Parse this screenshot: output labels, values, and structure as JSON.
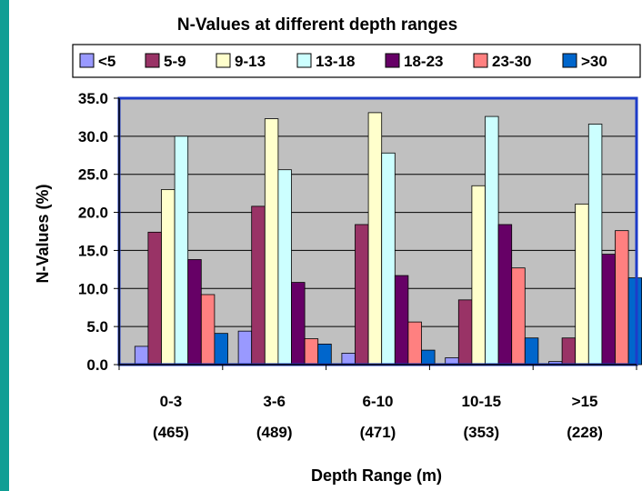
{
  "colors": {
    "page_border": "#0f9e94",
    "plot_bg": "#c0c0c0",
    "plot_border": "#1e3cc8"
  },
  "chart_data": {
    "type": "bar",
    "title": "N-Values at different depth ranges",
    "xlabel": "Depth Range (m)",
    "ylabel": "N-Values (%)",
    "ylim": [
      0,
      35
    ],
    "y_ticks": [
      "0.0",
      "5.0",
      "10.0",
      "15.0",
      "20.0",
      "25.0",
      "30.0",
      "35.0"
    ],
    "grid": true,
    "legend_position": "top",
    "categories": [
      "0-3",
      "3-6",
      "6-10",
      "10-15",
      ">15"
    ],
    "category_counts": [
      "(465)",
      "(489)",
      "(471)",
      "(353)",
      "(228)"
    ],
    "series": [
      {
        "name": "<5",
        "color": "#9999ff",
        "values": [
          2.4,
          4.4,
          1.5,
          0.9,
          0.4
        ]
      },
      {
        "name": "5-9",
        "color": "#993366",
        "values": [
          17.4,
          20.8,
          18.4,
          8.5,
          3.5
        ]
      },
      {
        "name": "9-13",
        "color": "#ffffcc",
        "values": [
          23.0,
          32.3,
          33.1,
          23.5,
          21.1
        ]
      },
      {
        "name": "13-18",
        "color": "#ccffff",
        "values": [
          30.0,
          25.6,
          27.8,
          32.6,
          31.6
        ]
      },
      {
        "name": "18-23",
        "color": "#660066",
        "values": [
          13.8,
          10.8,
          11.7,
          18.4,
          14.5
        ]
      },
      {
        "name": "23-30",
        "color": "#ff8080",
        "values": [
          9.2,
          3.4,
          5.6,
          12.7,
          17.6
        ]
      },
      {
        "name": ">30",
        "color": "#0066cc",
        "values": [
          4.1,
          2.7,
          1.9,
          3.5,
          11.4
        ]
      }
    ]
  }
}
